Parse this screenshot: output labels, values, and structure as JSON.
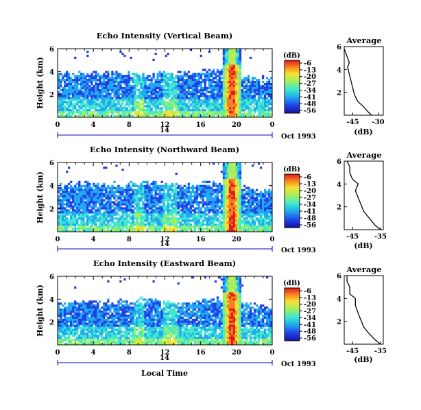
{
  "figure": {
    "xlabel": "Local Time",
    "date_label": "Oct 1993",
    "date_label_variant": "Oct 1993",
    "day_label": "14",
    "colorbar_unit": "(dB)",
    "colorbar_ticks": [
      "-6",
      "-13",
      "-20",
      "-27",
      "-34",
      "-41",
      "-48",
      "-56"
    ],
    "colors": {
      "colormap": [
        "#1a10a0",
        "#2040e8",
        "#20a8f0",
        "#40e8d0",
        "#a0f060",
        "#f8e030",
        "#f88020",
        "#e01818"
      ],
      "axis": "#000000",
      "day_line": "#0000cc"
    }
  },
  "chart_data": [
    {
      "type": "heatmap",
      "title": "Echo Intensity (Vertical Beam)",
      "ylabel": "Height (km)",
      "x_ticks": [
        "0",
        "4",
        "8",
        "12",
        "16",
        "20",
        "0"
      ],
      "y_ticks": [
        "6",
        "4",
        "2"
      ],
      "xlim": [
        0,
        24
      ],
      "ylim": [
        0,
        6
      ],
      "top_boundary_km": [
        [
          0,
          3.8
        ],
        [
          2,
          3.7
        ],
        [
          4,
          3.9
        ],
        [
          6,
          3.8
        ],
        [
          8,
          3.9
        ],
        [
          10,
          3.7
        ],
        [
          12,
          3.9
        ],
        [
          14,
          3.8
        ],
        [
          16,
          4.0
        ],
        [
          18,
          4.1
        ],
        [
          20,
          3.6
        ],
        [
          22,
          3.4
        ],
        [
          24,
          3.3
        ]
      ],
      "strong_echo_time_range": [
        18.5,
        20.5
      ],
      "colorbar_db_range": [
        -56,
        -6
      ],
      "average_panel": {
        "title": "Average",
        "xlabel": "(dB)",
        "x_ticks": [
          "-45",
          "-30"
        ],
        "y_ticks": [
          "6",
          "4",
          "2"
        ],
        "xlim": [
          -50,
          -27
        ],
        "ylim": [
          0,
          6
        ],
        "profile": [
          [
            -34,
            0.0
          ],
          [
            -36,
            0.3
          ],
          [
            -39,
            0.8
          ],
          [
            -42,
            1.2
          ],
          [
            -44,
            1.8
          ],
          [
            -45,
            2.4
          ],
          [
            -46,
            3.0
          ],
          [
            -47,
            3.6
          ],
          [
            -48,
            4.2
          ],
          [
            -47,
            4.6
          ],
          [
            -48,
            5.0
          ],
          [
            -49,
            5.4
          ],
          [
            -50,
            5.8
          ]
        ]
      }
    },
    {
      "type": "heatmap",
      "title": "Echo Intensity (Northward Beam)",
      "ylabel": "Height (km)",
      "x_ticks": [
        "0",
        "4",
        "8",
        "12",
        "16",
        "20",
        "0"
      ],
      "y_ticks": [
        "6",
        "4",
        "2"
      ],
      "xlim": [
        0,
        24
      ],
      "ylim": [
        0,
        6
      ],
      "top_boundary_km": [
        [
          0,
          4.0
        ],
        [
          2,
          4.1
        ],
        [
          4,
          4.2
        ],
        [
          6,
          4.0
        ],
        [
          8,
          4.2
        ],
        [
          10,
          4.1
        ],
        [
          12,
          4.2
        ],
        [
          14,
          4.0
        ],
        [
          16,
          4.1
        ],
        [
          18,
          4.2
        ],
        [
          20,
          4.0
        ],
        [
          22,
          3.6
        ],
        [
          24,
          3.4
        ]
      ],
      "strong_echo_time_range": [
        18.5,
        20.5
      ],
      "colorbar_db_range": [
        -56,
        -6
      ],
      "average_panel": {
        "title": "Average",
        "xlabel": "(dB)",
        "x_ticks": [
          "-45",
          "-35"
        ],
        "y_ticks": [
          "6",
          "4",
          "2"
        ],
        "xlim": [
          -48,
          -34
        ],
        "ylim": [
          0,
          6
        ],
        "profile": [
          [
            -35,
            0.0
          ],
          [
            -37,
            0.4
          ],
          [
            -39,
            1.0
          ],
          [
            -41,
            1.6
          ],
          [
            -42,
            2.2
          ],
          [
            -43,
            2.8
          ],
          [
            -44,
            3.4
          ],
          [
            -43,
            4.0
          ],
          [
            -45,
            4.4
          ],
          [
            -46,
            5.0
          ],
          [
            -46,
            5.5
          ],
          [
            -47,
            6.0
          ]
        ]
      }
    },
    {
      "type": "heatmap",
      "title": "Echo Intensity (Eastward Beam)",
      "ylabel": "Height (km)",
      "x_ticks": [
        "0",
        "4",
        "8",
        "12",
        "16",
        "20",
        "0"
      ],
      "y_ticks": [
        "6",
        "4",
        "2"
      ],
      "xlim": [
        0,
        24
      ],
      "ylim": [
        0,
        6
      ],
      "top_boundary_km": [
        [
          0,
          3.6
        ],
        [
          2,
          3.7
        ],
        [
          4,
          3.8
        ],
        [
          6,
          3.7
        ],
        [
          8,
          3.8
        ],
        [
          10,
          3.9
        ],
        [
          12,
          3.7
        ],
        [
          14,
          3.6
        ],
        [
          16,
          3.8
        ],
        [
          18,
          3.9
        ],
        [
          20,
          3.6
        ],
        [
          22,
          3.4
        ],
        [
          24,
          3.3
        ]
      ],
      "strong_echo_time_range": [
        18.5,
        20.5
      ],
      "colorbar_db_range": [
        -56,
        -6
      ],
      "average_panel": {
        "title": "Average",
        "xlabel": "(dB)",
        "x_ticks": [
          "-45",
          "-35"
        ],
        "y_ticks": [
          "6",
          "4",
          "2"
        ],
        "xlim": [
          -48,
          -34
        ],
        "ylim": [
          0,
          6
        ],
        "profile": [
          [
            -35,
            0.0
          ],
          [
            -37,
            0.4
          ],
          [
            -39,
            0.9
          ],
          [
            -41,
            1.5
          ],
          [
            -42,
            2.1
          ],
          [
            -43,
            2.7
          ],
          [
            -44,
            3.4
          ],
          [
            -44,
            4.0
          ],
          [
            -46,
            4.4
          ],
          [
            -46,
            5.0
          ],
          [
            -47,
            5.5
          ],
          [
            -47,
            6.0
          ]
        ]
      }
    }
  ]
}
